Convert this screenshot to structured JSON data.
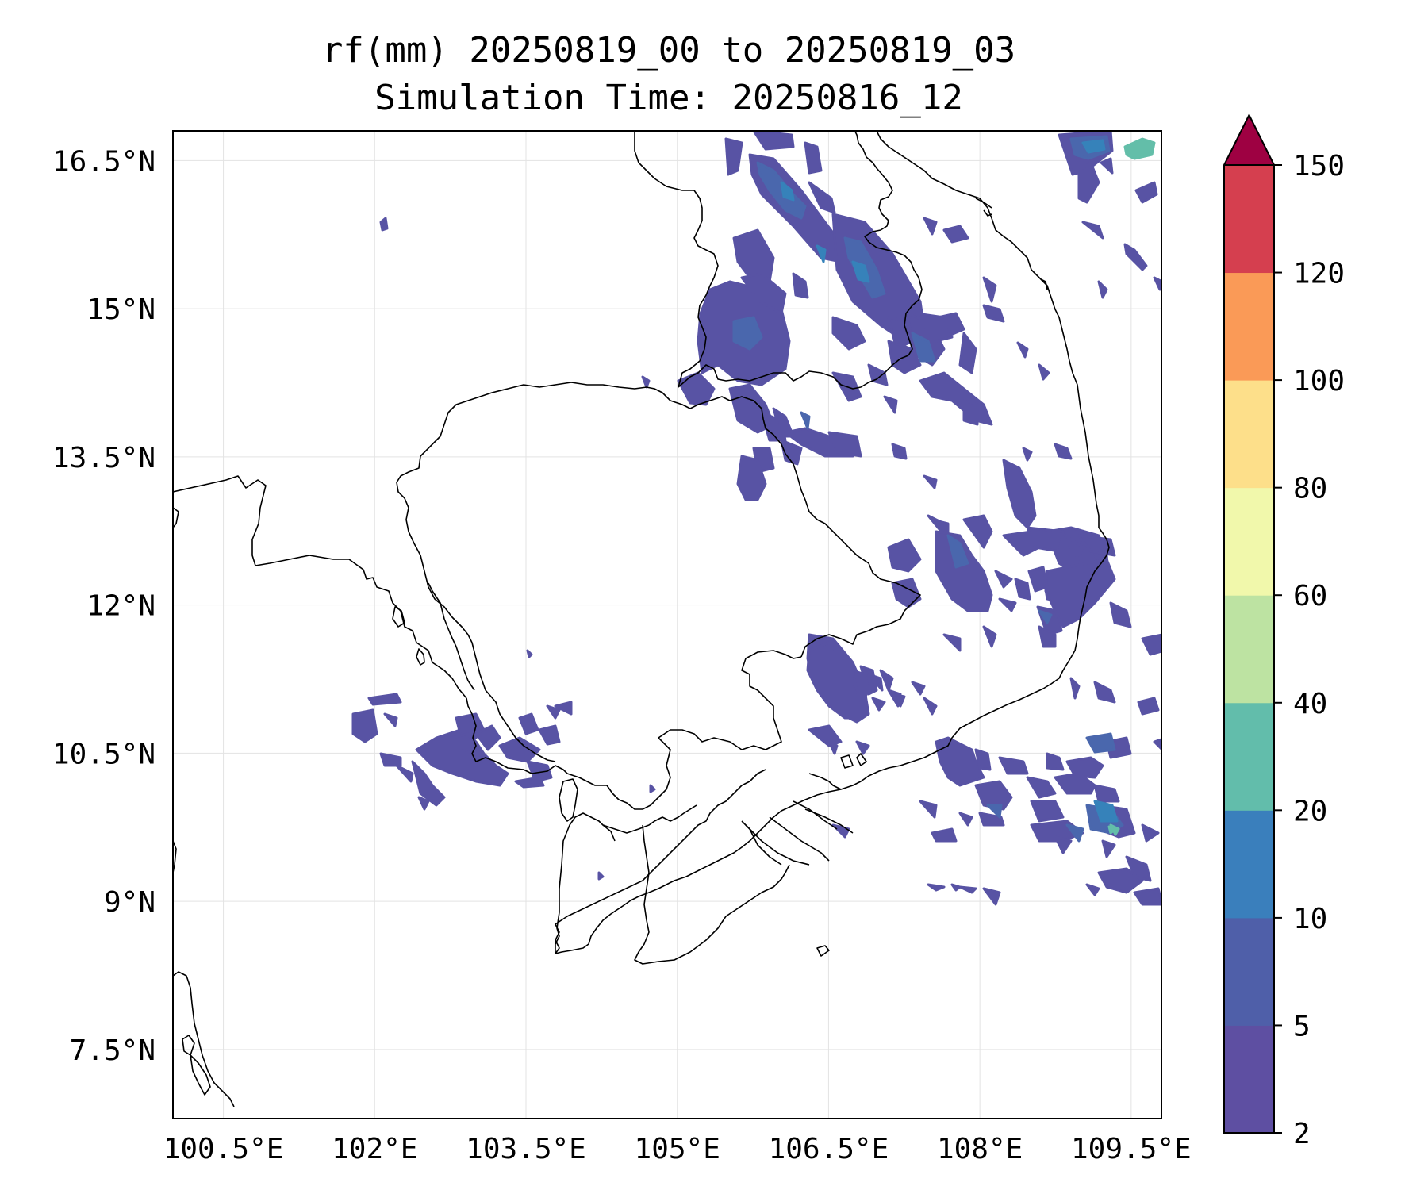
{
  "figure": {
    "title_line1": "rf(mm) 20250819_00 to 20250819_03",
    "title_line2": "Simulation Time: 20250816_12"
  },
  "map_extent": {
    "lon_min": 100.0,
    "lon_max": 109.8,
    "lat_min": 6.8,
    "lat_max": 16.8
  },
  "axes": {
    "lon_ticks": [
      100.5,
      102.0,
      103.5,
      105.0,
      106.5,
      108.0,
      109.5
    ],
    "lon_labels": [
      "100.5°E",
      "102°E",
      "103.5°E",
      "105°E",
      "106.5°E",
      "108°E",
      "109.5°E"
    ],
    "lat_ticks": [
      16.5,
      15.0,
      13.5,
      12.0,
      10.5,
      9.0,
      7.5
    ],
    "lat_labels": [
      "16.5°N",
      "15°N",
      "13.5°N",
      "12°N",
      "10.5°N",
      "9°N",
      "7.5°N"
    ],
    "grid": true
  },
  "colorbar": {
    "levels": [
      2,
      5,
      10,
      20,
      40,
      60,
      80,
      100,
      120,
      150
    ],
    "labels": [
      "2",
      "5",
      "10",
      "20",
      "40",
      "60",
      "80",
      "100",
      "120",
      "150"
    ],
    "colors": [
      "#5e4fa2",
      "#4f5fa9",
      "#3a7fbc",
      "#62bdab",
      "#bde3a2",
      "#f1f8ab",
      "#fddf8a",
      "#fa9a57",
      "#d53f4f"
    ],
    "extend_color": "#9e0142",
    "extend": "max"
  },
  "rain_colors": {
    "light": "#5853a4",
    "mid": "#4a67ad",
    "heavy": "#3682ba",
    "peak": "#63bea9"
  }
}
